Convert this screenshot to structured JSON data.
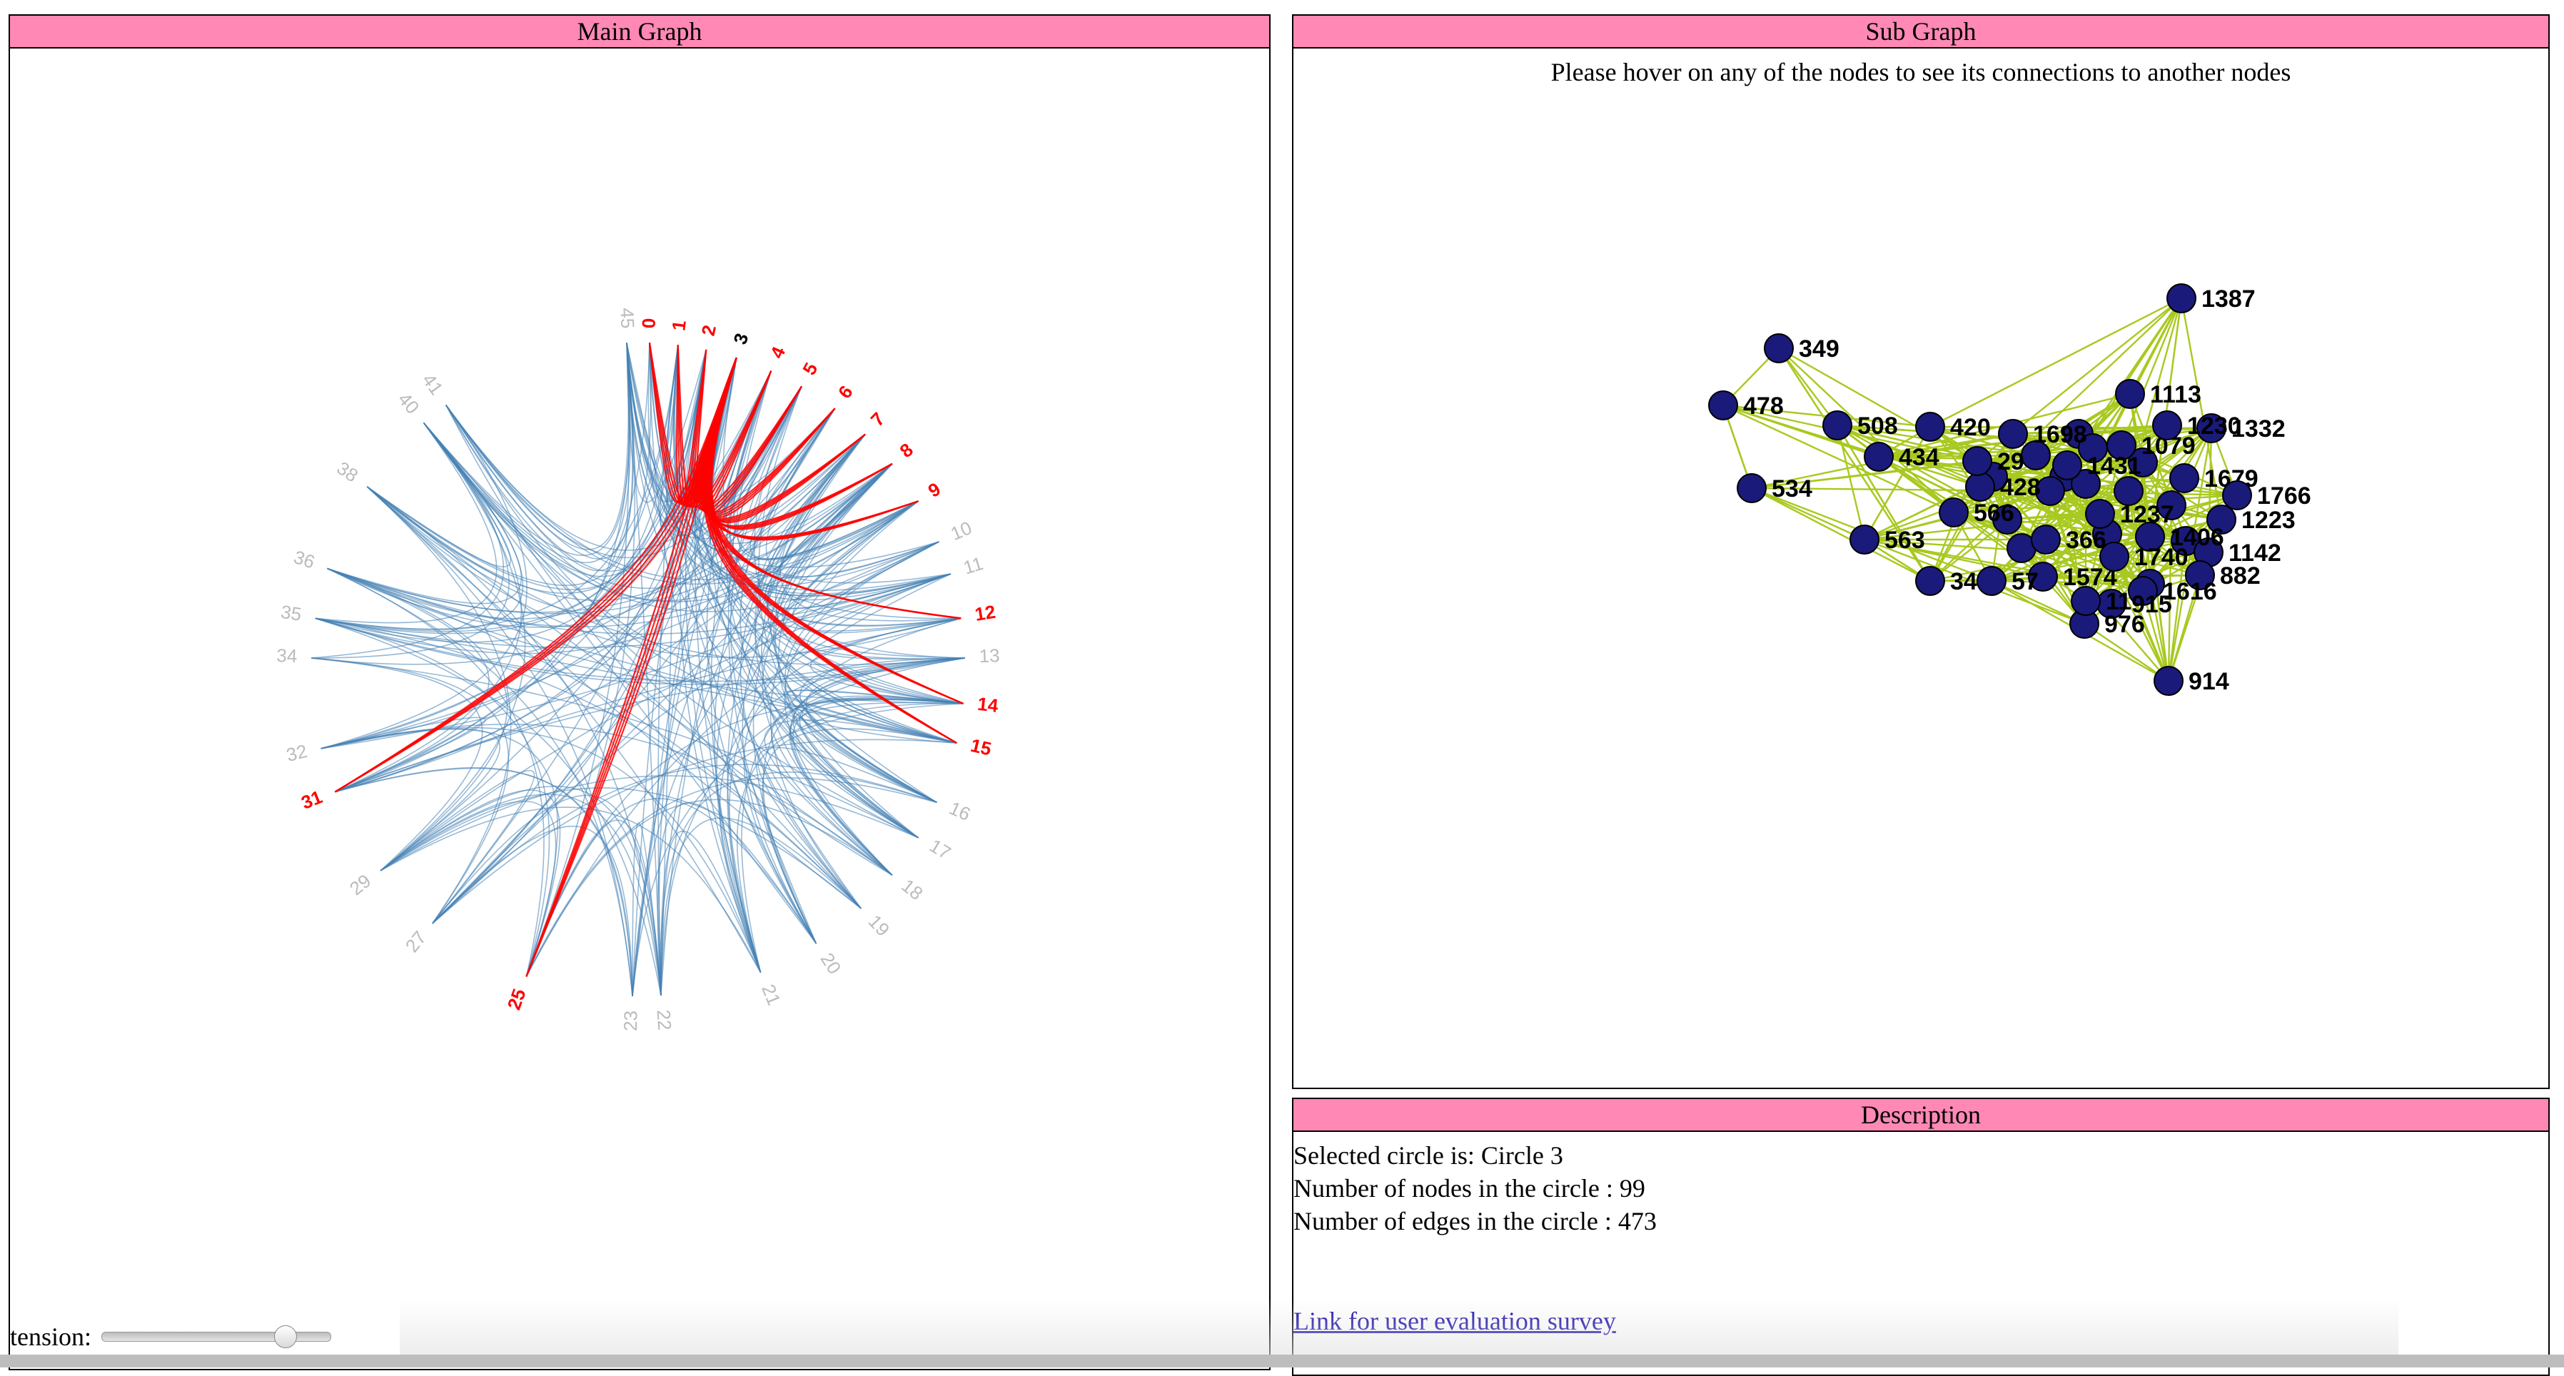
{
  "main_panel": {
    "title": "Main Graph",
    "tension_label": "tension:",
    "tension_value": 0.8,
    "selected_nodes": [
      "0",
      "1",
      "2",
      "3",
      "4",
      "5",
      "6",
      "7",
      "8",
      "9",
      "12",
      "14",
      "15",
      "25",
      "31"
    ],
    "selected_anchor": "3",
    "node_labels": [
      "45",
      "0",
      "1",
      "2",
      "3",
      "4",
      "5",
      "6",
      "7",
      "8",
      "9",
      "10",
      "11",
      "12",
      "13",
      "14",
      "15",
      "16",
      "17",
      "18",
      "19",
      "20",
      "21",
      "22",
      "23",
      "25",
      "27",
      "29",
      "31",
      "32",
      "34",
      "35",
      "36",
      "38",
      "40",
      "41"
    ],
    "colors": {
      "edge": "#4682b4",
      "highlight": "#ff0000",
      "label_dim": "#bbbbbb",
      "anchor_label": "#000000"
    }
  },
  "sub_panel": {
    "title": "Sub Graph",
    "hint": "Please hover on any of the nodes to see its connections to another nodes",
    "nodes": [
      "1387",
      "349",
      "478",
      "508",
      "420",
      "434",
      "534",
      "566",
      "563",
      "428",
      "1113",
      "1332",
      "1679",
      "1766",
      "1223",
      "1142",
      "882",
      "1616",
      "915",
      "976",
      "914",
      "1574",
      "366",
      "1237",
      "1698",
      "1079",
      "1431",
      "34",
      "57",
      "29",
      "11",
      "1406",
      "1740",
      "1230"
    ],
    "colors": {
      "node": "#1a1a7a",
      "edge": "#a8c920"
    }
  },
  "description": {
    "title": "Description",
    "selected_circle": "Selected circle is: Circle 3",
    "node_count": "Number of nodes in the circle : 99",
    "edge_count": "Number of edges in the circle : 473",
    "survey_link": "Link for user evaluation survey"
  }
}
